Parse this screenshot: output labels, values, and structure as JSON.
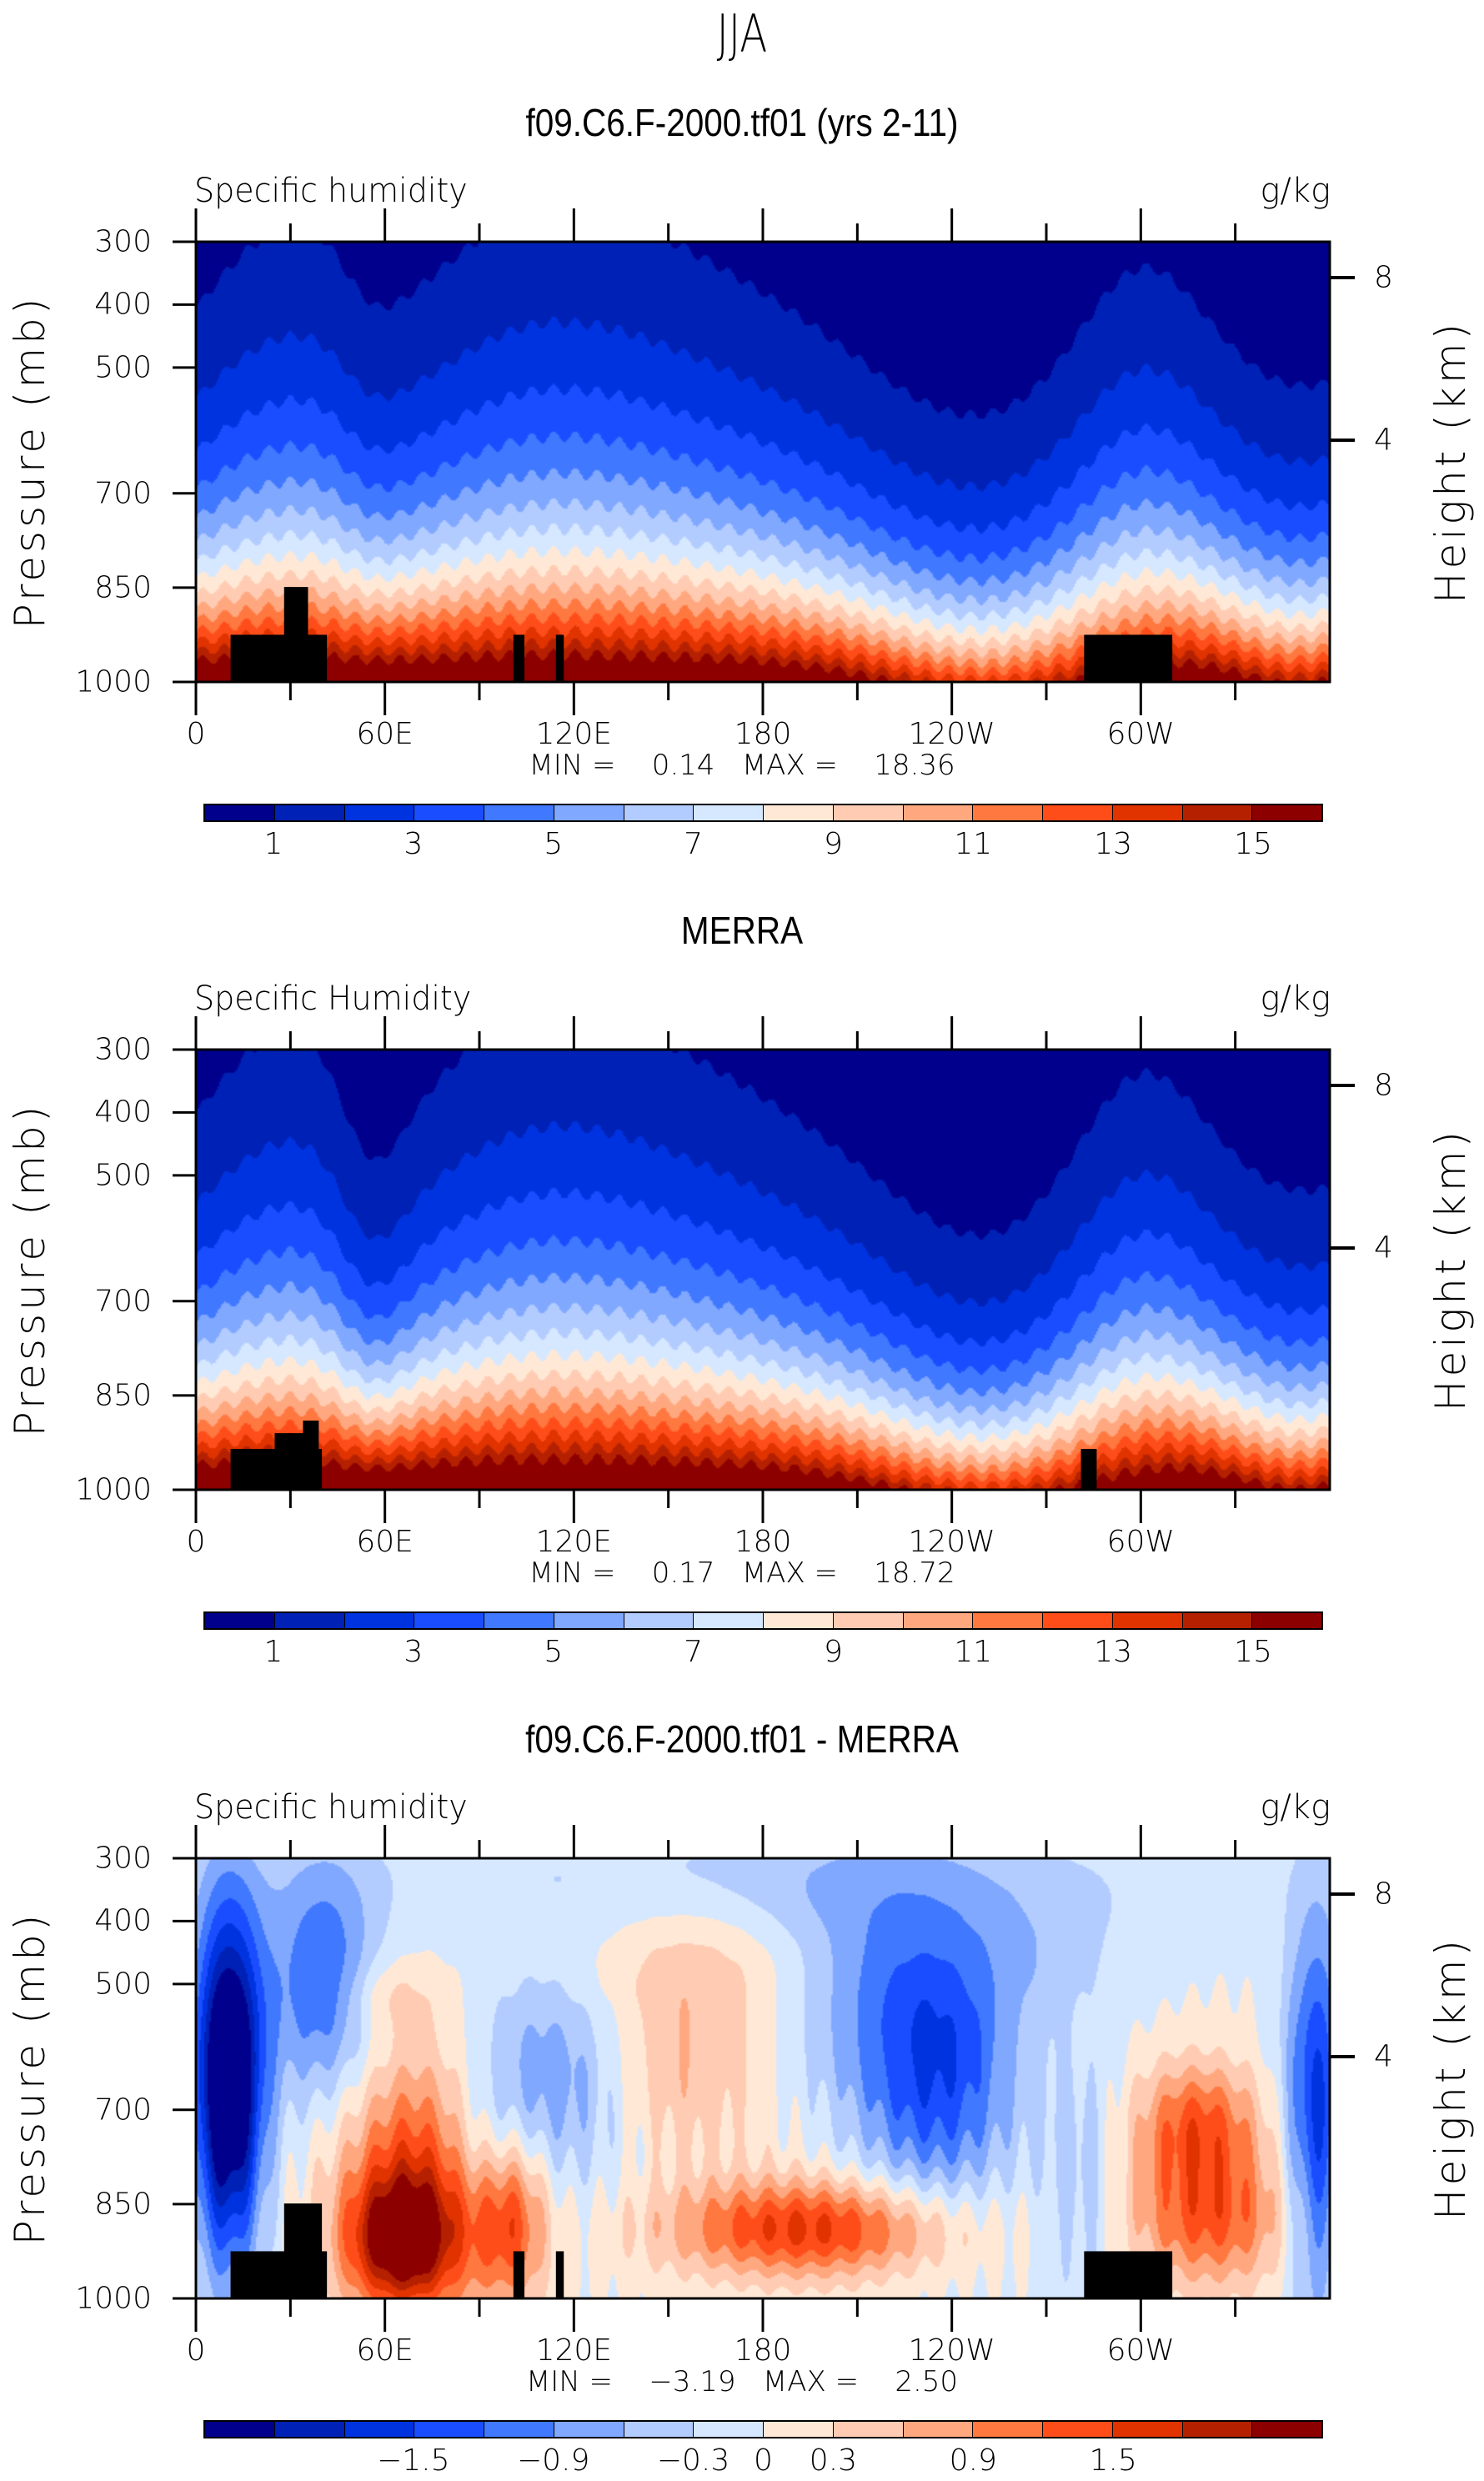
{
  "main_title": "JJA",
  "colors": [
    "#00008c",
    "#0021b5",
    "#0033e0",
    "#1a4dff",
    "#4078ff",
    "#80a8ff",
    "#b3ccff",
    "#d6e8ff",
    "#ffe9d6",
    "#ffccb3",
    "#ffa880",
    "#ff7840",
    "#ff4d1a",
    "#e03300",
    "#b52100",
    "#8c0000"
  ],
  "chart_data": [
    {
      "type": "heatmap",
      "title": "f09.C6.F-2000.tf01 (yrs 2-11)",
      "variable": "Specific humidity",
      "units": "g/kg",
      "xlabel": "",
      "ylabel": "Pressure (mb)",
      "ylabel_right": "Height (km)",
      "xticks": [
        "0",
        "60E",
        "120E",
        "180",
        "120W",
        "60W"
      ],
      "yticks": [
        "300",
        "400",
        "500",
        "700",
        "850",
        "1000"
      ],
      "yticks_right": [
        "8",
        "4"
      ],
      "ylim": [
        1000,
        300
      ],
      "min_label": "MIN =",
      "min": "0.14",
      "max_label": "MAX =",
      "max": "18.36",
      "levels": [
        1,
        2,
        3,
        4,
        5,
        6,
        7,
        8,
        9,
        10,
        11,
        12,
        13,
        14,
        15
      ],
      "level_labels": [
        "1",
        "3",
        "5",
        "7",
        "9",
        "11",
        "13",
        "15"
      ]
    },
    {
      "type": "heatmap",
      "title": "MERRA",
      "variable": "Specific Humidity",
      "units": "g/kg",
      "xlabel": "",
      "ylabel": "Pressure (mb)",
      "ylabel_right": "Height (km)",
      "xticks": [
        "0",
        "60E",
        "120E",
        "180",
        "120W",
        "60W"
      ],
      "yticks": [
        "300",
        "400",
        "500",
        "700",
        "850",
        "1000"
      ],
      "yticks_right": [
        "8",
        "4"
      ],
      "ylim": [
        1000,
        300
      ],
      "min_label": "MIN =",
      "min": "0.17",
      "max_label": "MAX =",
      "max": "18.72",
      "levels": [
        1,
        2,
        3,
        4,
        5,
        6,
        7,
        8,
        9,
        10,
        11,
        12,
        13,
        14,
        15
      ],
      "level_labels": [
        "1",
        "3",
        "5",
        "7",
        "9",
        "11",
        "13",
        "15"
      ]
    },
    {
      "type": "heatmap",
      "title": "f09.C6.F-2000.tf01 - MERRA",
      "variable": "Specific humidity",
      "units": "g/kg",
      "xlabel": "",
      "ylabel": "Pressure (mb)",
      "ylabel_right": "Height (km)",
      "xticks": [
        "0",
        "60E",
        "120E",
        "180",
        "120W",
        "60W"
      ],
      "yticks": [
        "300",
        "400",
        "500",
        "700",
        "850",
        "1000"
      ],
      "yticks_right": [
        "8",
        "4"
      ],
      "ylim": [
        1000,
        300
      ],
      "min_label": "MIN =",
      "min": "−3.19",
      "max_label": "MAX =",
      "max": "2.50",
      "levels": [
        -2.1,
        -1.8,
        -1.5,
        -1.2,
        -0.9,
        -0.6,
        -0.3,
        0,
        0.3,
        0.6,
        0.9,
        1.2,
        1.5,
        1.8,
        2.1
      ],
      "level_labels": [
        "−1.5",
        "−0.9",
        "−0.3",
        "0",
        "0.3",
        "0.9",
        "1.5"
      ]
    }
  ]
}
